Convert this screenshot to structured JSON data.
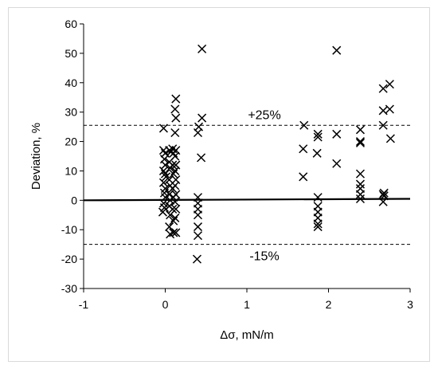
{
  "chart_data": {
    "type": "scatter",
    "title": "",
    "xlabel": "Δσ, mN/m",
    "ylabel": "Deviation, %",
    "xlim": [
      -1,
      3
    ],
    "ylim": [
      -30,
      60
    ],
    "xticks": [
      -1,
      0,
      1,
      2,
      3
    ],
    "xtick_labels": [
      "-1",
      "0",
      "1",
      "2",
      "3"
    ],
    "yticks": [
      -30,
      -20,
      -10,
      0,
      10,
      20,
      30,
      40,
      50,
      60
    ],
    "ytick_labels": [
      "-30",
      "-20",
      "-10",
      "0",
      "10",
      "20",
      "30",
      "40",
      "50",
      "60"
    ],
    "grid": false,
    "marker": "x",
    "marker_color": "#000000",
    "reference_lines": [
      {
        "y_start": 25.5,
        "y_end": 25.5,
        "style": "dashed",
        "label": "+25%"
      },
      {
        "y_start": -15,
        "y_end": -15,
        "style": "dashed",
        "label": "-15%"
      },
      {
        "y_start": 0,
        "y_end": 0.5,
        "style": "solid",
        "label": ""
      }
    ],
    "points": [
      {
        "x": -0.02,
        "y": 24.5
      },
      {
        "x": -0.02,
        "y": 17
      },
      {
        "x": 0.0,
        "y": 16
      },
      {
        "x": -0.01,
        "y": 14
      },
      {
        "x": 0.0,
        "y": 12
      },
      {
        "x": -0.02,
        "y": 10
      },
      {
        "x": 0.0,
        "y": 9
      },
      {
        "x": 0.01,
        "y": 8
      },
      {
        "x": -0.02,
        "y": 6
      },
      {
        "x": 0.0,
        "y": 4
      },
      {
        "x": -0.01,
        "y": 2.5
      },
      {
        "x": 0.0,
        "y": 1
      },
      {
        "x": -0.02,
        "y": -1
      },
      {
        "x": -0.01,
        "y": -2.5
      },
      {
        "x": -0.03,
        "y": -4
      },
      {
        "x": 0.05,
        "y": 17
      },
      {
        "x": 0.07,
        "y": 16.5
      },
      {
        "x": 0.05,
        "y": 13
      },
      {
        "x": 0.06,
        "y": 11
      },
      {
        "x": 0.05,
        "y": 7
      },
      {
        "x": 0.06,
        "y": 5
      },
      {
        "x": 0.05,
        "y": 2
      },
      {
        "x": 0.06,
        "y": 0
      },
      {
        "x": 0.05,
        "y": -2
      },
      {
        "x": 0.06,
        "y": -5
      },
      {
        "x": 0.05,
        "y": -9
      },
      {
        "x": 0.06,
        "y": -11.5
      },
      {
        "x": 0.09,
        "y": 17.5
      },
      {
        "x": 0.1,
        "y": 16
      },
      {
        "x": 0.09,
        "y": 12
      },
      {
        "x": 0.1,
        "y": 9
      },
      {
        "x": 0.09,
        "y": 4
      },
      {
        "x": 0.1,
        "y": 1
      },
      {
        "x": 0.09,
        "y": -3
      },
      {
        "x": 0.1,
        "y": -7
      },
      {
        "x": 0.1,
        "y": -11
      },
      {
        "x": 0.13,
        "y": 34.5
      },
      {
        "x": 0.12,
        "y": 31
      },
      {
        "x": 0.13,
        "y": 28
      },
      {
        "x": 0.12,
        "y": 23
      },
      {
        "x": 0.13,
        "y": 17
      },
      {
        "x": 0.12,
        "y": 15
      },
      {
        "x": 0.13,
        "y": 12
      },
      {
        "x": 0.12,
        "y": 10
      },
      {
        "x": 0.13,
        "y": 7
      },
      {
        "x": 0.12,
        "y": 5
      },
      {
        "x": 0.13,
        "y": 2
      },
      {
        "x": 0.12,
        "y": -0.5
      },
      {
        "x": 0.13,
        "y": -3
      },
      {
        "x": 0.12,
        "y": -6
      },
      {
        "x": 0.13,
        "y": -11
      },
      {
        "x": 0.4,
        "y": 1
      },
      {
        "x": 0.4,
        "y": -1
      },
      {
        "x": 0.4,
        "y": -3
      },
      {
        "x": 0.4,
        "y": -5
      },
      {
        "x": 0.4,
        "y": -9
      },
      {
        "x": 0.4,
        "y": -12
      },
      {
        "x": 0.39,
        "y": -20
      },
      {
        "x": 0.41,
        "y": 25
      },
      {
        "x": 0.4,
        "y": 23
      },
      {
        "x": 0.45,
        "y": 51.5
      },
      {
        "x": 0.45,
        "y": 28
      },
      {
        "x": 0.44,
        "y": 14.5
      },
      {
        "x": 1.7,
        "y": 25.5
      },
      {
        "x": 1.69,
        "y": 17.5
      },
      {
        "x": 1.69,
        "y": 8
      },
      {
        "x": 1.87,
        "y": 22.5
      },
      {
        "x": 1.87,
        "y": 21.5
      },
      {
        "x": 1.86,
        "y": 16
      },
      {
        "x": 1.87,
        "y": 1
      },
      {
        "x": 1.87,
        "y": -2
      },
      {
        "x": 1.87,
        "y": -4
      },
      {
        "x": 1.87,
        "y": -6
      },
      {
        "x": 1.87,
        "y": -8
      },
      {
        "x": 1.87,
        "y": -9
      },
      {
        "x": 2.1,
        "y": 51
      },
      {
        "x": 2.1,
        "y": 22.5
      },
      {
        "x": 2.1,
        "y": 12.5
      },
      {
        "x": 2.39,
        "y": 24
      },
      {
        "x": 2.39,
        "y": 20
      },
      {
        "x": 2.39,
        "y": 19.5
      },
      {
        "x": 2.39,
        "y": 9
      },
      {
        "x": 2.39,
        "y": 5.5
      },
      {
        "x": 2.39,
        "y": 4
      },
      {
        "x": 2.39,
        "y": 2
      },
      {
        "x": 2.39,
        "y": 0.5
      },
      {
        "x": 2.67,
        "y": 38
      },
      {
        "x": 2.67,
        "y": 30.5
      },
      {
        "x": 2.67,
        "y": 25.5
      },
      {
        "x": 2.68,
        "y": 2.5
      },
      {
        "x": 2.67,
        "y": 2
      },
      {
        "x": 2.68,
        "y": 1.5
      },
      {
        "x": 2.67,
        "y": -0.5
      },
      {
        "x": 2.75,
        "y": 39.5
      },
      {
        "x": 2.75,
        "y": 31
      },
      {
        "x": 2.76,
        "y": 21
      }
    ]
  }
}
